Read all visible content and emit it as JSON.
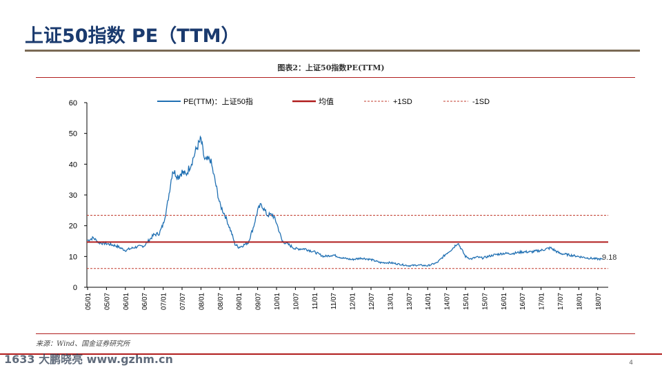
{
  "slide": {
    "title": "上证50指数 PE（TTM）",
    "page_number": "4"
  },
  "chart_caption": "图表2：上证50指数PE(TTM)",
  "source": "来源：Wind、国金证券研究所",
  "watermark": "1633 大鹏晓亮 www.gzhm.cn",
  "colors": {
    "title": "#1a3a6e",
    "pe_line": "#1f6fb2",
    "mean_line": "#b01c1c",
    "sd_line": "#c0392b",
    "rule": "#7a6a55"
  },
  "chart_data": {
    "type": "line",
    "title": "图表2：上证50指数PE(TTM)",
    "xlabel": "",
    "ylabel": "",
    "ylim": [
      0,
      60
    ],
    "yticks": [
      "0",
      "10",
      "20",
      "30",
      "40",
      "50",
      "60"
    ],
    "categories": [
      "05/01",
      "05/07",
      "06/01",
      "06/07",
      "07/01",
      "07/07",
      "08/01",
      "08/07",
      "09/01",
      "09/07",
      "10/01",
      "10/07",
      "11/01",
      "11/07",
      "12/01",
      "12/07",
      "13/01",
      "13/07",
      "14/01",
      "14/07",
      "15/01",
      "15/07",
      "16/01",
      "16/07",
      "17/01",
      "17/07",
      "18/01",
      "18/07"
    ],
    "legend": [
      "PE(TTM)：上证50指",
      "均值",
      "+1SD",
      "-1SD"
    ],
    "series": [
      {
        "name": "PE(TTM)：上证50指",
        "style": "solid",
        "x": [
          0,
          0.3,
          0.6,
          1,
          1.5,
          2,
          2.5,
          3,
          3.5,
          3.8,
          4,
          4.2,
          4.5,
          4.8,
          5,
          5.2,
          5.5,
          5.8,
          6,
          6.2,
          6.5,
          6.8,
          7,
          7.3,
          7.6,
          7.8,
          8,
          8.2,
          8.5,
          8.8,
          9,
          9.2,
          9.5,
          9.8,
          10,
          10.3,
          10.6,
          11,
          11.5,
          12,
          12.5,
          13,
          13.5,
          14,
          14.5,
          15,
          15.5,
          16,
          16.5,
          17,
          17.5,
          18,
          18.5,
          19,
          19.3,
          19.6,
          20,
          20.3,
          20.6,
          20.9,
          21.2,
          21.5,
          22,
          22.5,
          23,
          23.5,
          24,
          24.5,
          25,
          25.5,
          26,
          26.5,
          27,
          27.3
        ],
        "values": [
          15.2,
          16.1,
          14.5,
          14.2,
          13.5,
          12.0,
          13.0,
          13.5,
          17.0,
          17.5,
          20.5,
          26.0,
          38.0,
          36.0,
          37.5,
          36.5,
          40.5,
          45.5,
          48.0,
          41.0,
          41.5,
          33.0,
          27.0,
          23.0,
          18.0,
          14.0,
          13.0,
          13.5,
          14.5,
          20.0,
          25.0,
          27.0,
          23.5,
          23.5,
          21.0,
          15.0,
          14.0,
          12.5,
          12.5,
          11.5,
          10.0,
          10.5,
          9.5,
          9.0,
          9.5,
          9.0,
          8.0,
          8.0,
          7.5,
          7.0,
          7.2,
          7.0,
          8.0,
          11.0,
          12.5,
          14.5,
          10.0,
          9.2,
          9.8,
          9.5,
          10.0,
          10.5,
          11.0,
          11.0,
          11.5,
          11.5,
          12.0,
          12.8,
          11.0,
          10.5,
          10.0,
          9.5,
          9.18,
          9.18
        ]
      },
      {
        "name": "均值",
        "style": "solid",
        "value": 14.7
      },
      {
        "name": "+1SD",
        "style": "dashed",
        "value": 23.4
      },
      {
        "name": "-1SD",
        "style": "dashed",
        "value": 6.1
      }
    ],
    "annotations": [
      {
        "text": "9.18",
        "x": 27.3,
        "y": 9.18
      }
    ]
  }
}
